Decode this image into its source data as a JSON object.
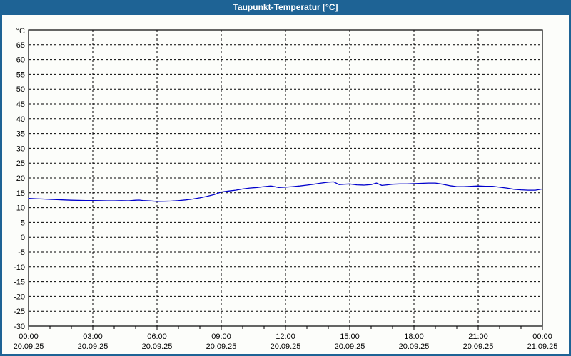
{
  "window": {
    "title": "Taupunkt-Temperatur [°C]",
    "titlebar_color": "#1e6395",
    "border_color": "#1e6395",
    "content_bg": "#fcfdfa"
  },
  "chart_data": {
    "type": "line",
    "title": "Taupunkt-Temperatur [°C]",
    "ylabel": "°C",
    "xlabel": "",
    "unit_label": "°C",
    "ylim": [
      -30,
      70
    ],
    "y_tick_step": 5,
    "y_ticks": [
      65,
      60,
      55,
      50,
      45,
      40,
      35,
      30,
      25,
      20,
      15,
      10,
      5,
      0,
      -5,
      -10,
      -15,
      -20,
      -25,
      -30
    ],
    "x_hours_range": [
      0,
      24
    ],
    "x_minor_tick_hours": 1,
    "x_major_tick_hours": 3,
    "grid": {
      "horizontal_dashed": true,
      "vertical_dashed_every_hours": 3
    },
    "x_ticks": [
      {
        "hour": 0,
        "time": "00:00",
        "date": "20.09.25"
      },
      {
        "hour": 3,
        "time": "03:00",
        "date": "20.09.25"
      },
      {
        "hour": 6,
        "time": "06:00",
        "date": "20.09.25"
      },
      {
        "hour": 9,
        "time": "09:00",
        "date": "20.09.25"
      },
      {
        "hour": 12,
        "time": "12:00",
        "date": "20.09.25"
      },
      {
        "hour": 15,
        "time": "15:00",
        "date": "20.09.25"
      },
      {
        "hour": 18,
        "time": "18:00",
        "date": "20.09.25"
      },
      {
        "hour": 21,
        "time": "21:00",
        "date": "20.09.25"
      },
      {
        "hour": 24,
        "time": "00:00",
        "date": "21.09.25"
      }
    ],
    "line_color": "#0000cc",
    "grid_color": "#000000",
    "series": [
      {
        "name": "Taupunkt-Temperatur",
        "x_hours": [
          0,
          0.33,
          0.67,
          1,
          1.33,
          1.67,
          2,
          2.33,
          2.67,
          3,
          3.33,
          3.67,
          4,
          4.33,
          4.67,
          5,
          5.17,
          5.33,
          5.67,
          6,
          6.33,
          6.67,
          7,
          7.33,
          7.67,
          8,
          8.33,
          8.67,
          9,
          9.33,
          9.67,
          10,
          10.33,
          10.67,
          11,
          11.33,
          11.67,
          12,
          12.33,
          12.67,
          13,
          13.33,
          13.67,
          14,
          14.25,
          14.5,
          14.75,
          15,
          15.33,
          15.67,
          16,
          16.25,
          16.5,
          16.75,
          17,
          17.33,
          17.67,
          18,
          18.33,
          18.67,
          19,
          19.33,
          19.67,
          20,
          20.33,
          20.67,
          21,
          21.33,
          21.67,
          22,
          22.33,
          22.67,
          23,
          23.33,
          23.67,
          24
        ],
        "values": [
          13.1,
          13.0,
          12.9,
          12.8,
          12.7,
          12.6,
          12.5,
          12.45,
          12.4,
          12.4,
          12.35,
          12.3,
          12.3,
          12.35,
          12.3,
          12.5,
          12.55,
          12.4,
          12.25,
          12.1,
          12.15,
          12.2,
          12.35,
          12.6,
          12.9,
          13.3,
          13.8,
          14.4,
          15.3,
          15.6,
          15.9,
          16.3,
          16.6,
          16.8,
          17.1,
          17.3,
          16.8,
          16.9,
          17.1,
          17.3,
          17.6,
          17.9,
          18.3,
          18.6,
          18.7,
          17.8,
          17.9,
          18.0,
          17.7,
          17.6,
          17.8,
          18.3,
          17.5,
          17.7,
          17.9,
          18.0,
          18.0,
          18.1,
          18.2,
          18.3,
          18.3,
          17.9,
          17.4,
          17.1,
          17.1,
          17.2,
          17.3,
          17.2,
          17.2,
          16.9,
          16.6,
          16.2,
          16.0,
          15.9,
          15.9,
          16.3
        ]
      }
    ]
  }
}
